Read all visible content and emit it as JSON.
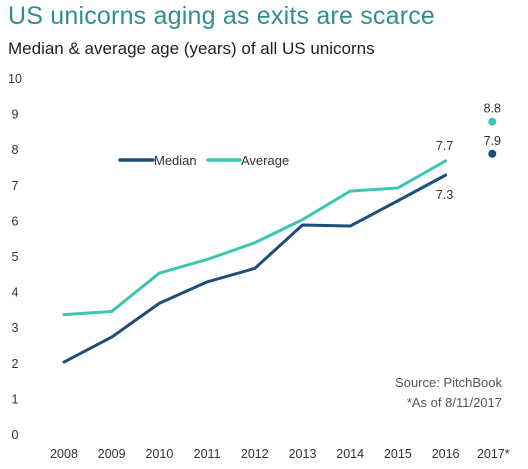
{
  "title": "US unicorns aging as exits are scarce",
  "subtitle": "Median & average age (years) of all US unicorns",
  "source": "Source: PitchBook",
  "note": "*As of 8/11/2017",
  "colors": {
    "median": "#1f4e79",
    "average": "#3cc6b0",
    "title": "#2f8f8c"
  },
  "chart_data": {
    "type": "line",
    "categories": [
      "2008",
      "2009",
      "2010",
      "2011",
      "2012",
      "2013",
      "2014",
      "2015",
      "2016",
      "2017*"
    ],
    "ylim": [
      0,
      10
    ],
    "yticks": [
      0,
      1,
      2,
      3,
      4,
      5,
      6,
      7,
      8,
      9,
      10
    ],
    "grid": false,
    "legend_position": "upper-left",
    "series": [
      {
        "name": "Median",
        "color": "#1f4e79",
        "values": [
          2.05,
          2.75,
          3.7,
          4.3,
          4.68,
          5.9,
          5.87,
          6.58,
          7.3,
          7.9
        ]
      },
      {
        "name": "Average",
        "color": "#3cc6b0",
        "values": [
          3.38,
          3.47,
          4.55,
          4.93,
          5.4,
          6.05,
          6.85,
          6.94,
          7.7,
          8.8
        ]
      }
    ],
    "highlighted_point_index": 9,
    "data_labels": [
      {
        "series": "Average",
        "index": 8,
        "text": "7.7"
      },
      {
        "series": "Median",
        "index": 8,
        "text": "7.3"
      },
      {
        "series": "Average",
        "index": 9,
        "text": "8.8"
      },
      {
        "series": "Median",
        "index": 9,
        "text": "7.9"
      }
    ]
  }
}
